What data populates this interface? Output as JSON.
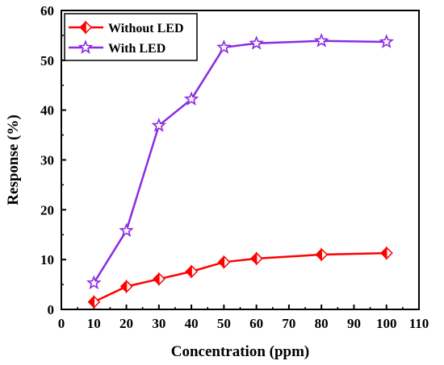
{
  "chart_data": {
    "type": "line",
    "title": "",
    "xlabel": "Concentration (ppm)",
    "ylabel": "Response (%)",
    "xlim": [
      0,
      110
    ],
    "ylim": [
      0,
      60
    ],
    "xticks": [
      0,
      10,
      20,
      30,
      40,
      50,
      60,
      70,
      80,
      90,
      100,
      110
    ],
    "yticks": [
      0,
      10,
      20,
      30,
      40,
      50,
      60
    ],
    "grid": false,
    "legend_position": "top-left",
    "x": [
      10,
      20,
      30,
      40,
      50,
      60,
      80,
      100
    ],
    "series": [
      {
        "name": "Without LED",
        "color": "#ff0000",
        "marker": "diamond",
        "values": [
          1.5,
          4.6,
          6.1,
          7.6,
          9.5,
          10.2,
          11.0,
          11.3
        ]
      },
      {
        "name": "With LED",
        "color": "#8b2be2",
        "marker": "star",
        "values": [
          5.3,
          15.8,
          36.9,
          42.2,
          52.6,
          53.4,
          53.9,
          53.7
        ]
      }
    ]
  }
}
